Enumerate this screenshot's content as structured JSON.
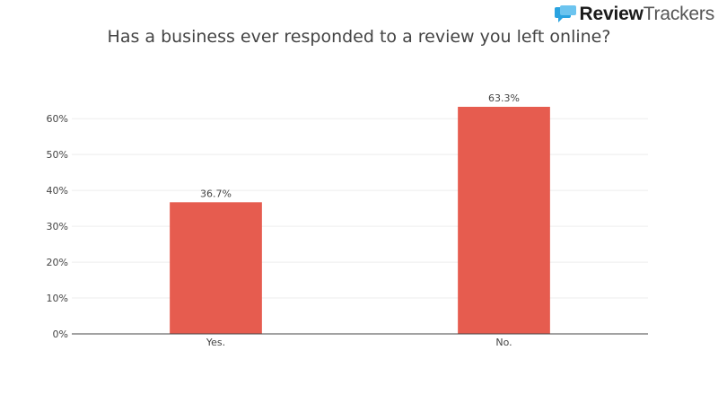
{
  "brand": {
    "name_part1": "Review",
    "name_part2": "Trackers",
    "logo_icon": "speech-bubble-icon",
    "logo_color": "#2aa3e0"
  },
  "chart_data": {
    "type": "bar",
    "title": "Has a business ever responded to a review you left online?",
    "xlabel": "",
    "ylabel": "",
    "categories": [
      "Yes.",
      "No."
    ],
    "values": [
      36.7,
      63.3
    ],
    "data_labels": [
      "36.7%",
      "63.3%"
    ],
    "ylim": [
      0,
      63.3
    ],
    "yticks": [
      0,
      10,
      20,
      30,
      40,
      50,
      60
    ],
    "ytick_labels": [
      "0%",
      "10%",
      "20%",
      "30%",
      "40%",
      "50%",
      "60%"
    ],
    "bar_color": "#e65c4f",
    "grid": true,
    "legend": "none"
  }
}
